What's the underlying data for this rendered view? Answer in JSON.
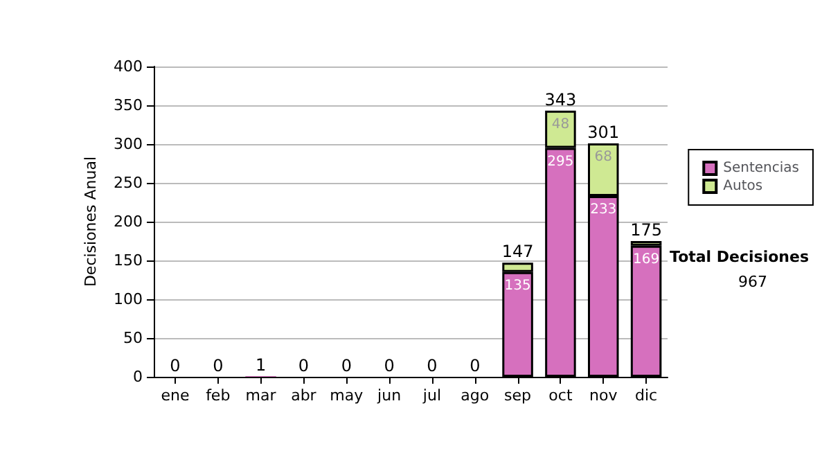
{
  "chart_data": {
    "type": "bar",
    "stacked": true,
    "ylabel": "Decisiones Anual",
    "categories": [
      "ene",
      "feb",
      "mar",
      "abr",
      "may",
      "jun",
      "jul",
      "ago",
      "sep",
      "oct",
      "nov",
      "dic"
    ],
    "series": [
      {
        "name": "Sentencias",
        "color": "#d670be",
        "values": [
          0,
          0,
          1,
          0,
          0,
          0,
          0,
          0,
          135,
          295,
          233,
          169
        ],
        "value_labels": [
          null,
          null,
          null,
          null,
          null,
          null,
          null,
          null,
          "135",
          "295",
          "233",
          "169"
        ]
      },
      {
        "name": "Autos",
        "color": "#cfe993",
        "values": [
          0,
          0,
          0,
          0,
          0,
          0,
          0,
          0,
          12,
          48,
          68,
          6
        ],
        "value_labels": [
          null,
          null,
          null,
          null,
          null,
          null,
          null,
          null,
          null,
          "48",
          "68",
          null
        ]
      }
    ],
    "totals": [
      "0",
      "0",
      "1",
      "0",
      "0",
      "0",
      "0",
      "0",
      "147",
      "343",
      "301",
      "175"
    ],
    "ylim": [
      0,
      400
    ],
    "yticks": [
      0,
      50,
      100,
      150,
      200,
      250,
      300,
      350,
      400
    ],
    "grid": "y",
    "legend": "right",
    "annotations": [
      "Total Decisiones",
      "967"
    ]
  }
}
